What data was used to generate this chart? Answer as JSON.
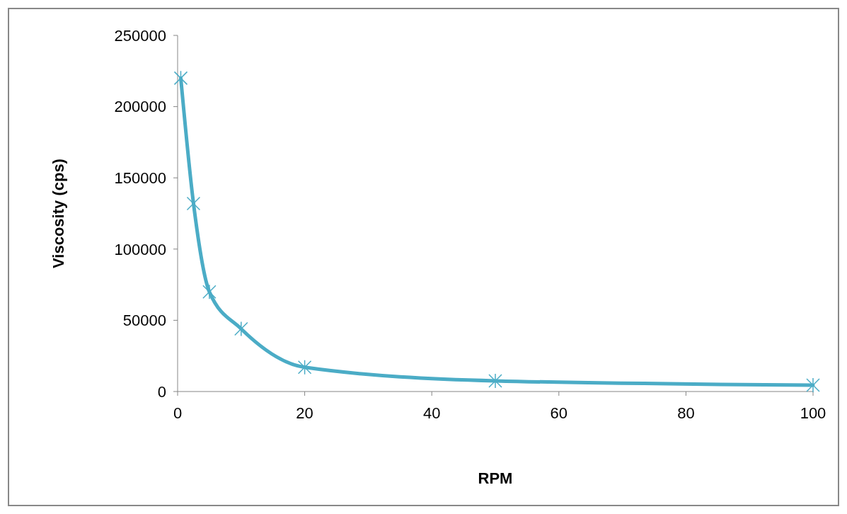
{
  "chart_data": {
    "type": "line",
    "xlabel": "RPM",
    "ylabel": "Viscosity (cps)",
    "x": [
      0.5,
      2.5,
      5,
      10,
      20,
      50,
      100
    ],
    "series": [
      {
        "color": "#4bacc6",
        "values": [
          220000,
          132000,
          70000,
          44000,
          17000,
          7500,
          4500
        ]
      }
    ],
    "xlim": [
      0,
      100
    ],
    "xticks": [
      0,
      20,
      40,
      60,
      80,
      100
    ],
    "ylim": [
      0,
      250000
    ],
    "yticks": [
      0,
      50000,
      100000,
      150000,
      200000,
      250000
    ],
    "grid": false,
    "marker": "cross",
    "line_style": "solid"
  }
}
